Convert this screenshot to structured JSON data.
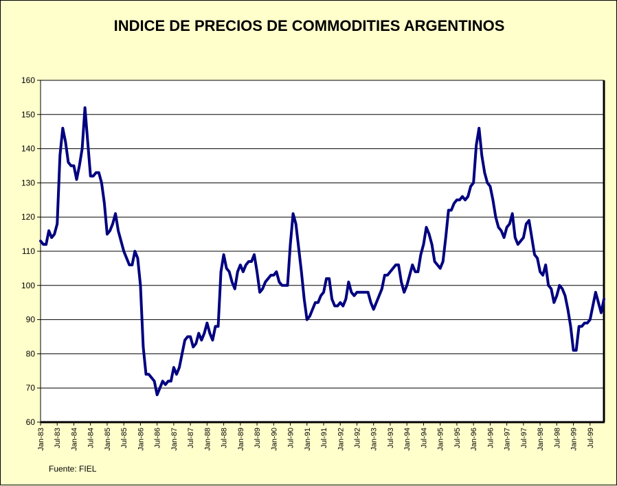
{
  "chart_data": {
    "type": "line",
    "title": "INDICE DE PRECIOS DE COMMODITIES ARGENTINOS",
    "xlabel": "",
    "ylabel": "",
    "ylim": [
      60,
      160
    ],
    "yticks": [
      60,
      70,
      80,
      90,
      100,
      110,
      120,
      130,
      140,
      150,
      160
    ],
    "xticks": [
      "Jan-83",
      "Jul-83",
      "Jan-84",
      "Jul-84",
      "Jan-85",
      "Jul-85",
      "Jan-86",
      "Jul-86",
      "Jan-87",
      "Jul-87",
      "Jan-88",
      "Jul-88",
      "Jan-89",
      "Jul-89",
      "Jan-90",
      "Jul-90",
      "Jan-91",
      "Jul-91",
      "Jan-92",
      "Jul-92",
      "Jan-93",
      "Jul-93",
      "Jan-94",
      "Jul-94",
      "Jan-95",
      "Jul-95",
      "Jan-96",
      "Jul-96",
      "Jan-97",
      "Jul-97",
      "Jan-98",
      "Jul-98",
      "Jan-99",
      "Jul-99"
    ],
    "grid": "horizontal",
    "legend": "none",
    "line_color": "#000080",
    "series": [
      {
        "name": "",
        "values": [
          113,
          112,
          112,
          116,
          114,
          115,
          118,
          138,
          146,
          142,
          136,
          135,
          135,
          131,
          135,
          140,
          152,
          142,
          132,
          132,
          133,
          133,
          130,
          124,
          115,
          116,
          118,
          121,
          116,
          113,
          110,
          108,
          106,
          106,
          110,
          108,
          100,
          82,
          74,
          74,
          73,
          72,
          68,
          70,
          72,
          71,
          72,
          72,
          76,
          74,
          76,
          80,
          84,
          85,
          85,
          82,
          83,
          86,
          84,
          86,
          89,
          86,
          84,
          88,
          88,
          104,
          109,
          105,
          104,
          101,
          99,
          104,
          106,
          104,
          106,
          107,
          107,
          109,
          104,
          98,
          99,
          101,
          102,
          103,
          103,
          104,
          101,
          100,
          100,
          100,
          112,
          121,
          118,
          111,
          104,
          96,
          90,
          91,
          93,
          95,
          95,
          97,
          98,
          102,
          102,
          96,
          94,
          94,
          95,
          94,
          96,
          101,
          98,
          97,
          98,
          98,
          98,
          98,
          98,
          95,
          93,
          95,
          97,
          99,
          103,
          103,
          104,
          105,
          106,
          106,
          101,
          98,
          100,
          103,
          106,
          104,
          104,
          109,
          112,
          117,
          115,
          112,
          107,
          106,
          105,
          107,
          114,
          122,
          122,
          124,
          125,
          125,
          126,
          125,
          126,
          129,
          130,
          141,
          146,
          138,
          133,
          130,
          129,
          125,
          120,
          117,
          116,
          114,
          117,
          118,
          121,
          114,
          112,
          113,
          114,
          118,
          119,
          114,
          109,
          108,
          104,
          103,
          106,
          100,
          99,
          95,
          97,
          100,
          99,
          97,
          93,
          88,
          81,
          81,
          88,
          88,
          89,
          89,
          90,
          94,
          98,
          95,
          92,
          96
        ]
      }
    ]
  },
  "source_note": "Fuente: FIEL"
}
